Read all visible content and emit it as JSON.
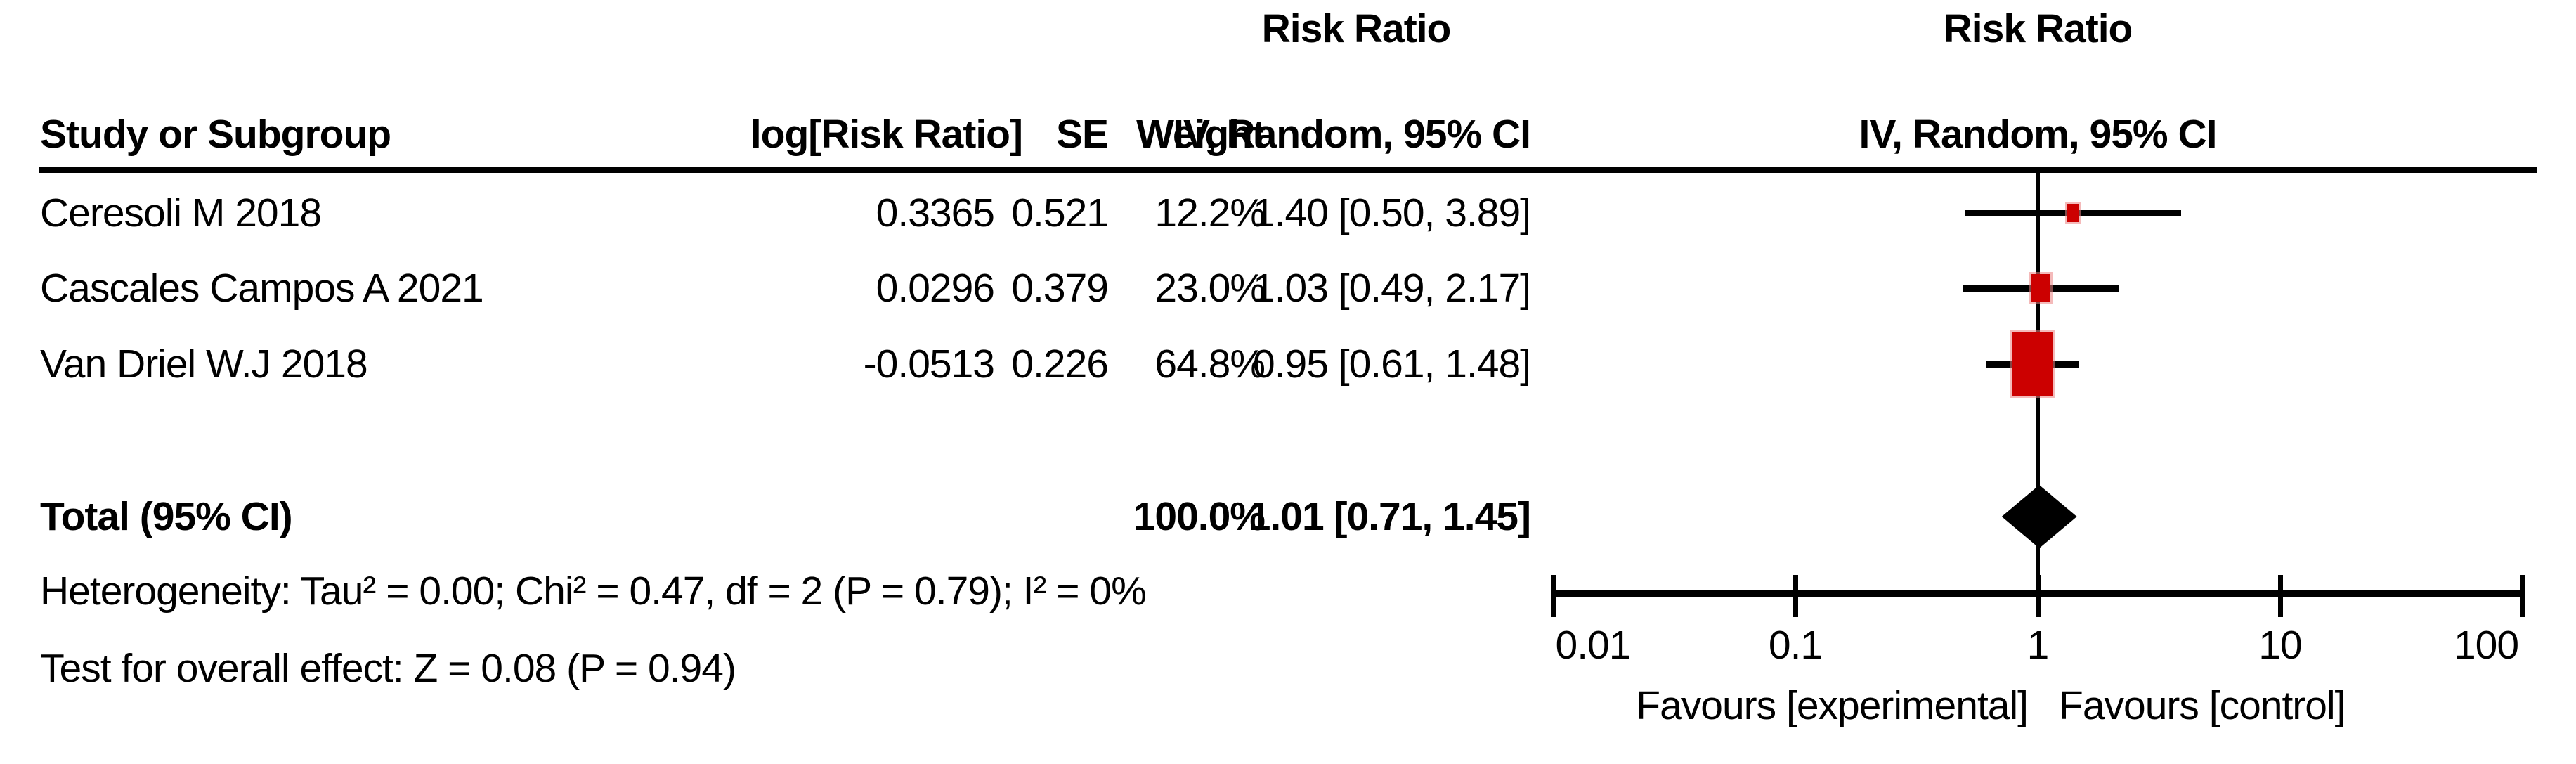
{
  "table": {
    "stats_effect_header_top": "Risk Ratio",
    "col_study": "Study or Subgroup",
    "col_log_rr": "log[Risk Ratio]",
    "col_se": "SE",
    "col_weight": "Weight",
    "col_ci": "IV, Random, 95% CI"
  },
  "plot": {
    "effect_header_top": "Risk Ratio",
    "effect_header_bottom": "IV, Random, 95% CI"
  },
  "chart_data": {
    "type": "forest",
    "effect_measure": "Risk Ratio",
    "model": "IV, Random, 95% CI",
    "scale": "log",
    "studies": [
      {
        "name": "Ceresoli M 2018",
        "log_rr": "0.3365",
        "se": "0.521",
        "weight": 12.2,
        "weight_label": "12.2%",
        "rr": 1.4,
        "ci_low": 0.5,
        "ci_high": 3.89,
        "ci_label": "1.40 [0.50, 3.89]"
      },
      {
        "name": "Cascales Campos A 2021",
        "log_rr": "0.0296",
        "se": "0.379",
        "weight": 23.0,
        "weight_label": "23.0%",
        "rr": 1.03,
        "ci_low": 0.49,
        "ci_high": 2.17,
        "ci_label": "1.03 [0.49, 2.17]"
      },
      {
        "name": "Van Driel W.J 2018",
        "log_rr": "-0.0513",
        "se": "0.226",
        "weight": 64.8,
        "weight_label": "64.8%",
        "rr": 0.95,
        "ci_low": 0.61,
        "ci_high": 1.48,
        "ci_label": "0.95 [0.61, 1.48]"
      }
    ],
    "total": {
      "label": "Total (95% CI)",
      "weight_label": "100.0%",
      "rr": 1.01,
      "ci_low": 0.71,
      "ci_high": 1.45,
      "ci_label": "1.01 [0.71, 1.45]"
    },
    "heterogeneity": "Heterogeneity: Tau² = 0.00; Chi² = 0.47, df = 2 (P = 0.79); I² = 0%",
    "overall_effect": "Test for overall effect: Z = 0.08 (P = 0.94)",
    "axis": {
      "min": 0.01,
      "max": 100,
      "ticks": [
        0.01,
        0.1,
        1,
        10,
        100
      ],
      "tick_labels": [
        "0.01",
        "0.1",
        "1",
        "10",
        "100"
      ]
    },
    "favours_left": "Favours [experimental]",
    "favours_right": "Favours [control]",
    "marker_color": "#CC0000",
    "diamond_color": "#000000",
    "line_color": "#000000"
  }
}
